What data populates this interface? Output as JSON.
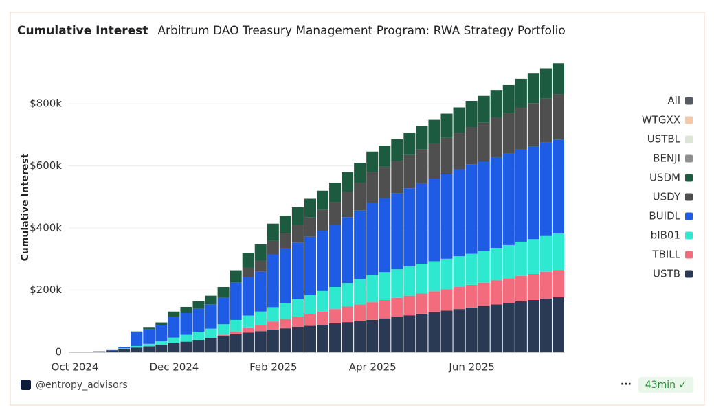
{
  "chart_data": {
    "type": "bar",
    "stacked": true,
    "title": "Cumulative Interest",
    "subtitle": "Arbitrum DAO Treasury Management Program: RWA Strategy Portfolio",
    "y_label": "Cumulative Interest",
    "categories": [
      "Oct 2024",
      null,
      null,
      null,
      null,
      null,
      null,
      null,
      "Dec 2024",
      null,
      null,
      null,
      null,
      null,
      null,
      null,
      "Feb 2025",
      null,
      null,
      null,
      null,
      null,
      null,
      null,
      "Apr 2025",
      null,
      null,
      null,
      null,
      null,
      null,
      null,
      "Jun 2025",
      null,
      null,
      null,
      null,
      null,
      null,
      null
    ],
    "ylim": [
      0,
      935000
    ],
    "yticks": [
      0,
      {
        "value": 200000,
        "label": "$200k"
      },
      {
        "value": 400000,
        "label": "$400k"
      },
      {
        "value": 600000,
        "label": "$600k"
      },
      {
        "value": 800000,
        "label": "$800k"
      }
    ],
    "grid": true,
    "legend": "right",
    "series": [
      {
        "name": "USTB",
        "color": "#2a3a55",
        "values": [
          0,
          1000,
          3000,
          6000,
          11000,
          15000,
          19000,
          24000,
          29000,
          34000,
          40000,
          46000,
          52000,
          58000,
          63000,
          68000,
          73000,
          77000,
          81000,
          85000,
          89000,
          93000,
          97000,
          100000,
          104000,
          109000,
          114000,
          119000,
          124000,
          129000,
          134000,
          139000,
          144000,
          149000,
          154000,
          159000,
          164000,
          168000,
          173000,
          177000
        ]
      },
      {
        "name": "TBILL",
        "color": "#f26c7e",
        "values": [
          0,
          0,
          0,
          0,
          0,
          0,
          0,
          0,
          0,
          0,
          0,
          0,
          4000,
          9000,
          15000,
          20000,
          26000,
          30000,
          34000,
          38000,
          42000,
          46000,
          50000,
          54000,
          57000,
          59000,
          61000,
          63000,
          65000,
          67000,
          69000,
          71000,
          73000,
          75000,
          77000,
          79000,
          82000,
          84000,
          86000,
          88000
        ]
      },
      {
        "name": "bIB01",
        "color": "#2ee8d0",
        "values": [
          0,
          0,
          0,
          0,
          2000,
          5000,
          8000,
          12000,
          18000,
          22000,
          26000,
          30000,
          34000,
          37000,
          40000,
          43000,
          46000,
          51000,
          56000,
          61000,
          66000,
          71000,
          76000,
          82000,
          88000,
          90000,
          92000,
          94000,
          96000,
          97000,
          98000,
          99000,
          100000,
          102000,
          105000,
          107000,
          110000,
          112000,
          115000,
          117000
        ]
      },
      {
        "name": "BUIDL",
        "color": "#1f5ce6",
        "values": [
          0,
          0,
          0,
          1000,
          3000,
          45000,
          48000,
          52000,
          66000,
          70000,
          74000,
          78000,
          85000,
          120000,
          124000,
          128000,
          170000,
          176000,
          182000,
          188000,
          194000,
          200000,
          212000,
          220000,
          232000,
          238000,
          245000,
          252000,
          259000,
          266000,
          273000,
          280000,
          287000,
          289000,
          292000,
          294000,
          297000,
          299000,
          301000,
          303000
        ]
      },
      {
        "name": "USDY",
        "color": "#4f4f4f",
        "values": [
          0,
          0,
          0,
          0,
          0,
          0,
          0,
          0,
          0,
          0,
          0,
          0,
          0,
          0,
          30000,
          36000,
          44000,
          50000,
          56000,
          62000,
          68000,
          74000,
          82000,
          90000,
          99000,
          101000,
          104000,
          107000,
          110000,
          113000,
          116000,
          118000,
          121000,
          124000,
          128000,
          131000,
          135000,
          139000,
          142000,
          146000
        ]
      },
      {
        "name": "USDM",
        "color": "#1c5b3f",
        "values": [
          0,
          0,
          0,
          0,
          1000,
          2000,
          4000,
          8000,
          18000,
          20000,
          24000,
          28000,
          35000,
          40000,
          48000,
          52000,
          55000,
          56000,
          58000,
          60000,
          61000,
          62000,
          63000,
          64000,
          66000,
          68000,
          70000,
          72000,
          74000,
          76000,
          78000,
          81000,
          84000,
          86000,
          88000,
          90000,
          92000,
          95000,
          97000,
          99000
        ]
      },
      {
        "name": "BENJI",
        "color": "#8e8e8e",
        "values": [
          0,
          0,
          0,
          0,
          0,
          0,
          0,
          0,
          0,
          0,
          0,
          0,
          0,
          0,
          0,
          0,
          0,
          0,
          0,
          0,
          0,
          0,
          0,
          0,
          0,
          0,
          0,
          0,
          0,
          0,
          0,
          0,
          0,
          0,
          0,
          0,
          0,
          0,
          0,
          0
        ]
      },
      {
        "name": "USTBL",
        "color": "#dde5d6",
        "values": [
          0,
          0,
          0,
          0,
          0,
          0,
          0,
          0,
          0,
          0,
          0,
          0,
          0,
          0,
          0,
          0,
          0,
          0,
          0,
          0,
          0,
          0,
          0,
          0,
          0,
          0,
          0,
          0,
          0,
          0,
          0,
          0,
          0,
          0,
          0,
          0,
          0,
          0,
          0,
          0
        ]
      },
      {
        "name": "WTGXX",
        "color": "#f5c9a8",
        "values": [
          0,
          0,
          0,
          0,
          0,
          0,
          0,
          0,
          0,
          0,
          0,
          0,
          0,
          0,
          0,
          0,
          0,
          0,
          0,
          0,
          0,
          0,
          0,
          0,
          0,
          0,
          0,
          0,
          0,
          0,
          0,
          0,
          0,
          0,
          0,
          0,
          0,
          0,
          0,
          0
        ]
      },
      {
        "name": "All",
        "color": "#555b60",
        "values": [
          0,
          0,
          0,
          0,
          0,
          0,
          0,
          0,
          0,
          0,
          0,
          0,
          0,
          0,
          0,
          0,
          0,
          0,
          0,
          0,
          0,
          0,
          0,
          0,
          0,
          0,
          0,
          0,
          0,
          0,
          0,
          0,
          0,
          0,
          0,
          0,
          0,
          0,
          0,
          0
        ]
      }
    ]
  },
  "footer": {
    "handle": "@entropy_advisors",
    "menu": "···",
    "badge": "43min ✓"
  }
}
